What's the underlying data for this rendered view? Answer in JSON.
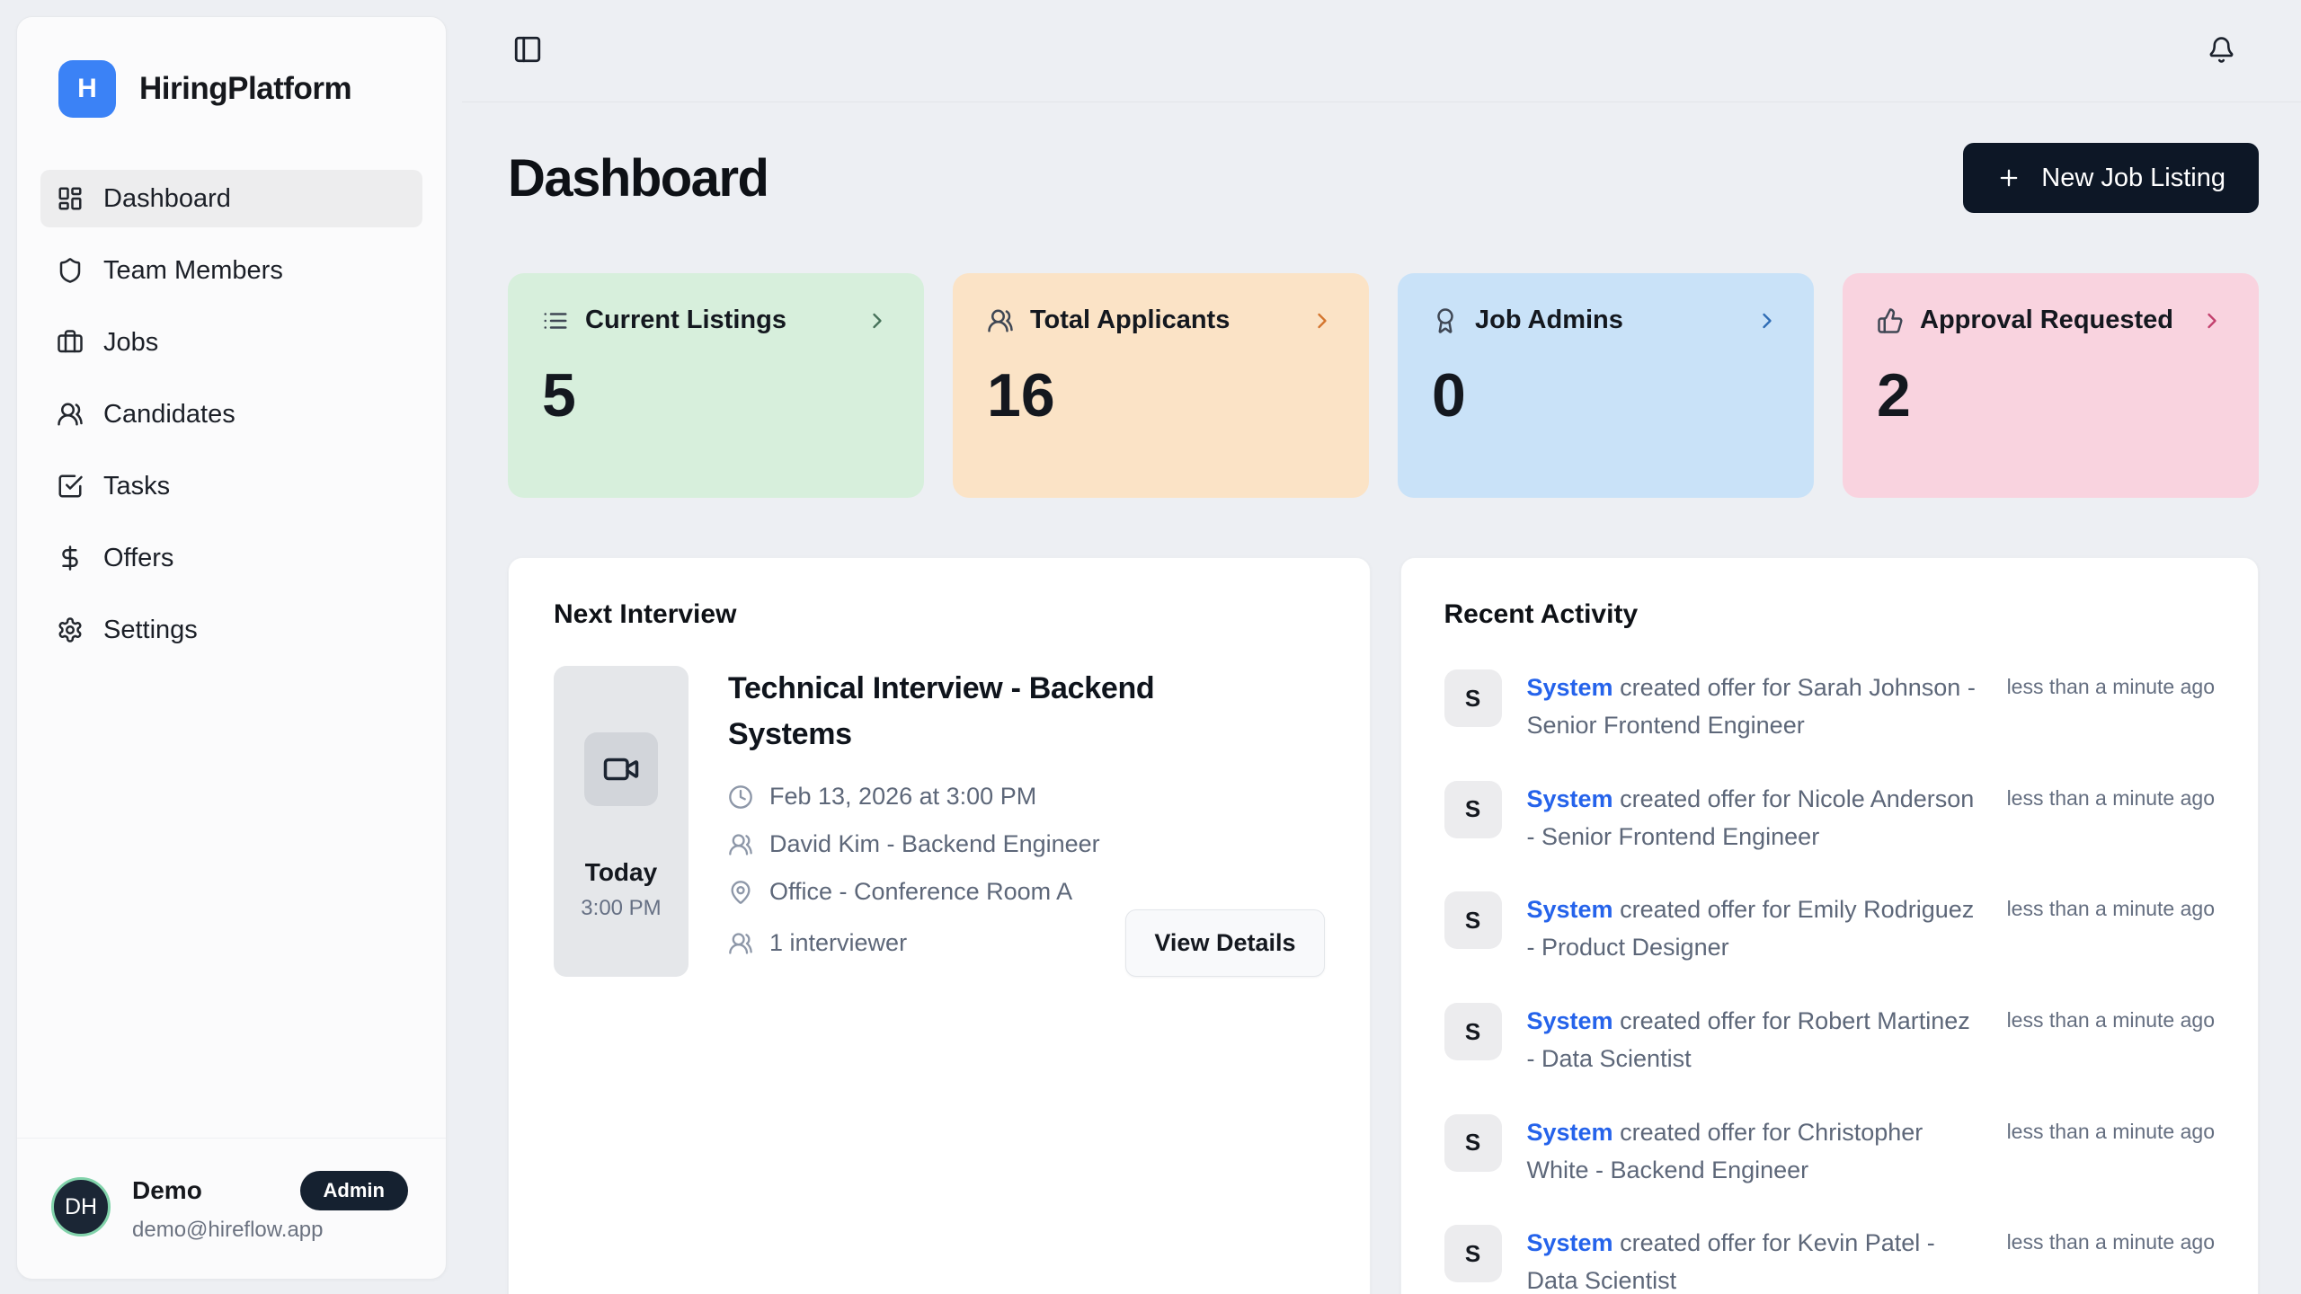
{
  "app": {
    "logo_letter": "H",
    "name": "HiringPlatform",
    "logo_color": "#3b82f6"
  },
  "topbar": {
    "toggle_icon": "panel-left",
    "bell_icon": "bell"
  },
  "sidebar": {
    "items": [
      {
        "label": "Dashboard",
        "icon": "layout-grid",
        "active": true
      },
      {
        "label": "Team Members",
        "icon": "shield",
        "active": false
      },
      {
        "label": "Jobs",
        "icon": "briefcase",
        "active": false
      },
      {
        "label": "Candidates",
        "icon": "users",
        "active": false
      },
      {
        "label": "Tasks",
        "icon": "square-check",
        "active": false
      },
      {
        "label": "Offers",
        "icon": "dollar",
        "active": false
      },
      {
        "label": "Settings",
        "icon": "gear",
        "active": false
      }
    ],
    "user": {
      "initials": "DH",
      "name": "Demo",
      "badge": "Admin",
      "email": "demo@hireflow.app"
    }
  },
  "page": {
    "title": "Dashboard",
    "new_job_button": "New Job Listing",
    "plus_icon": "plus"
  },
  "stats": [
    {
      "label": "Current Listings",
      "value": "5",
      "icon": "list",
      "chevron": "chevron-right",
      "bg": "#d7efdc",
      "accent": "#47725a"
    },
    {
      "label": "Total Applicants",
      "value": "16",
      "icon": "users",
      "chevron": "chevron-right",
      "bg": "#fbe3c6",
      "accent": "#d4752e"
    },
    {
      "label": "Job Admins",
      "value": "0",
      "icon": "award",
      "chevron": "chevron-right",
      "bg": "#c9e2f8",
      "accent": "#2e6cb5"
    },
    {
      "label": "Approval Requested",
      "value": "2",
      "icon": "thumbs-up",
      "chevron": "chevron-right",
      "bg": "#f9d3df",
      "accent": "#c2406d"
    }
  ],
  "next_interview": {
    "section_title": "Next Interview",
    "day": "Today",
    "time": "3:00 PM",
    "video_icon": "video",
    "title": "Technical Interview - Backend Systems",
    "clock_icon": "clock",
    "datetime": "Feb 13, 2026 at 3:00 PM",
    "candidate_icon": "users",
    "candidate": "David Kim - Backend Engineer",
    "location_icon": "map-pin",
    "location": "Office - Conference Room A",
    "interviewers_icon": "users",
    "interviewers": "1 interviewer",
    "view_details_button": "View Details"
  },
  "recent_activity": {
    "section_title": "Recent Activity",
    "items": [
      {
        "avatar": "S",
        "actor": "System",
        "text": "created offer for Sarah Johnson - Senior Frontend Engineer",
        "time": "less than a minute ago"
      },
      {
        "avatar": "S",
        "actor": "System",
        "text": "created offer for Nicole Anderson - Senior Frontend Engineer",
        "time": "less than a minute ago"
      },
      {
        "avatar": "S",
        "actor": "System",
        "text": "created offer for Emily Rodriguez - Product Designer",
        "time": "less than a minute ago"
      },
      {
        "avatar": "S",
        "actor": "System",
        "text": "created offer for Robert Martinez - Data Scientist",
        "time": "less than a minute ago"
      },
      {
        "avatar": "S",
        "actor": "System",
        "text": "created offer for Christopher White - Backend Engineer",
        "time": "less than a minute ago"
      },
      {
        "avatar": "S",
        "actor": "System",
        "text": "created offer for Kevin Patel - Data Scientist",
        "time": "less than a minute ago"
      }
    ]
  }
}
